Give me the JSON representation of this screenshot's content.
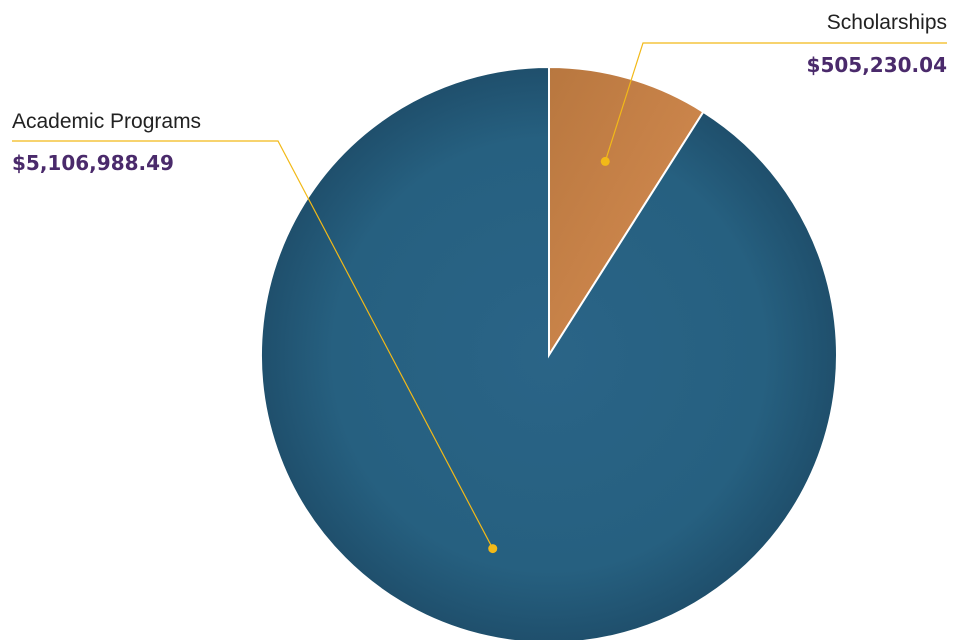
{
  "chart_data": {
    "type": "pie",
    "slices": [
      {
        "label": "Scholarships",
        "value": 505230.04,
        "display_value": "$505,230.04",
        "color": "#cf8a4f"
      },
      {
        "label": "Academic Programs",
        "value": 5106988.49,
        "display_value": "$5,106,988.49",
        "color": "#275e7e"
      }
    ],
    "start_angle_deg": 0,
    "direction": "clockwise",
    "leader_color": "#f2b918",
    "value_color": "#4a2a6b"
  }
}
